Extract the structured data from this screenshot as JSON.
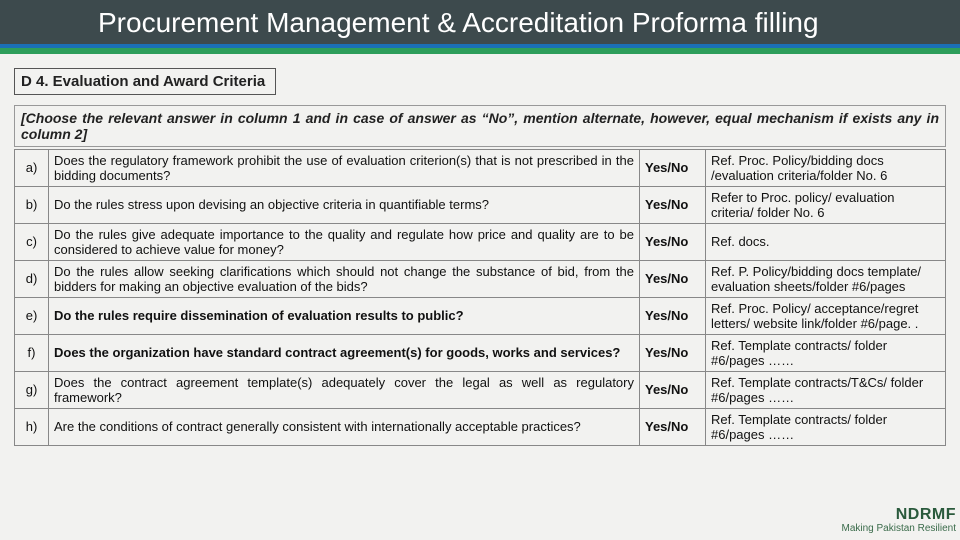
{
  "header": {
    "title": "Procurement Management & Accreditation Proforma filling"
  },
  "section": {
    "heading": "D 4. Evaluation and Award Criteria",
    "instruction": "[Choose the relevant answer in column 1 and in case of answer as “No”, mention alternate, however, equal mechanism if exists any in column 2]"
  },
  "rows": [
    {
      "id": "a)",
      "question": "Does the regulatory framework prohibit the use of evaluation criterion(s) that is not prescribed in the bidding documents?",
      "yn": "Yes/No",
      "ref": "Ref. Proc. Policy/bidding docs /evaluation criteria/folder No. 6",
      "bold": false
    },
    {
      "id": "b)",
      "question": "Do the rules stress upon devising an objective criteria in quantifiable terms?",
      "yn": "Yes/No",
      "ref": "Refer to Proc. policy/ evaluation criteria/ folder No. 6",
      "bold": false
    },
    {
      "id": "c)",
      "question": "Do the rules give adequate importance to the quality and regulate how price and quality are to be considered to achieve value for money?",
      "yn": "Yes/No",
      "ref": "Ref. docs.",
      "bold": false
    },
    {
      "id": "d)",
      "question": "Do the rules allow seeking clarifications which should not change the substance of bid, from the bidders for making an objective evaluation of the bids?",
      "yn": "Yes/No",
      "ref": "Ref. P. Policy/bidding docs template/ evaluation sheets/folder #6/pages",
      "bold": false
    },
    {
      "id": "e)",
      "question": "Do the rules require dissemination of evaluation results to public?",
      "yn": "Yes/No",
      "ref": "Ref. Proc. Policy/ acceptance/regret letters/ website link/folder #6/page. .",
      "bold": true
    },
    {
      "id": "f)",
      "question": "Does the organization have standard contract agreement(s) for goods, works and services?",
      "yn": "Yes/No",
      "ref": "Ref. Template contracts/ folder #6/pages ……",
      "bold": true
    },
    {
      "id": "g)",
      "question": "Does the contract agreement template(s) adequately cover the legal as well as regulatory framework?",
      "yn": "Yes/No",
      "ref": "Ref. Template contracts/T&Cs/ folder #6/pages ……",
      "bold": false
    },
    {
      "id": "h)",
      "question": "Are the conditions of contract generally consistent with internationally acceptable practices?",
      "yn": "Yes/No",
      "ref": "Ref. Template contracts/ folder #6/pages ……",
      "bold": false
    }
  ],
  "logo": {
    "text": "NDRMF",
    "tagline": "Making Pakistan Resilient"
  },
  "style": {
    "header_bg": "#3d4a4d",
    "accent_blue": "#1b6fb5",
    "accent_green": "#2e9e5b",
    "page_bg": "#f2f2f0"
  }
}
